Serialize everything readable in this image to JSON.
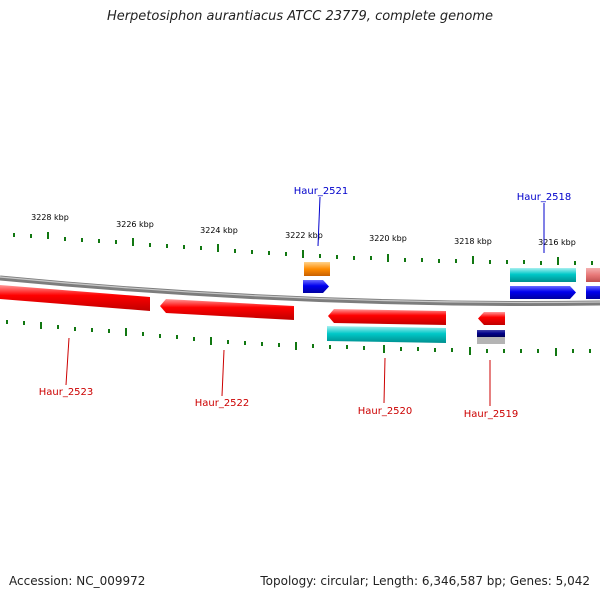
{
  "title": "Herpetosiphon aurantiacus ATCC 23779, complete genome",
  "accession_label": "Accession: NC_009972",
  "summary_label": "Topology: circular; Length: 6,346,587 bp; Genes: 5,042",
  "colors": {
    "backbone": "#7d7d7d",
    "tick": "#117711",
    "forward_label": "#0000cc",
    "reverse_label": "#cc0000",
    "red": "#ff0000",
    "blue": "#0000ee",
    "cyan": "#00c8c8",
    "orange": "#ff8c00",
    "navy": "#000088",
    "grey": "#b0b0b0",
    "pink": "#e87878"
  },
  "scale_labels": [
    "3228 kbp",
    "3226 kbp",
    "3224 kbp",
    "3222 kbp",
    "3220 kbp",
    "3218 kbp",
    "3216 kbp"
  ],
  "gene_labels": [
    {
      "text": "Haur_2521",
      "strand": "forward"
    },
    {
      "text": "Haur_2518",
      "strand": "forward"
    },
    {
      "text": "Haur_2523",
      "strand": "reverse"
    },
    {
      "text": "Haur_2522",
      "strand": "reverse"
    },
    {
      "text": "Haur_2520",
      "strand": "reverse"
    },
    {
      "text": "Haur_2519",
      "strand": "reverse"
    }
  ]
}
